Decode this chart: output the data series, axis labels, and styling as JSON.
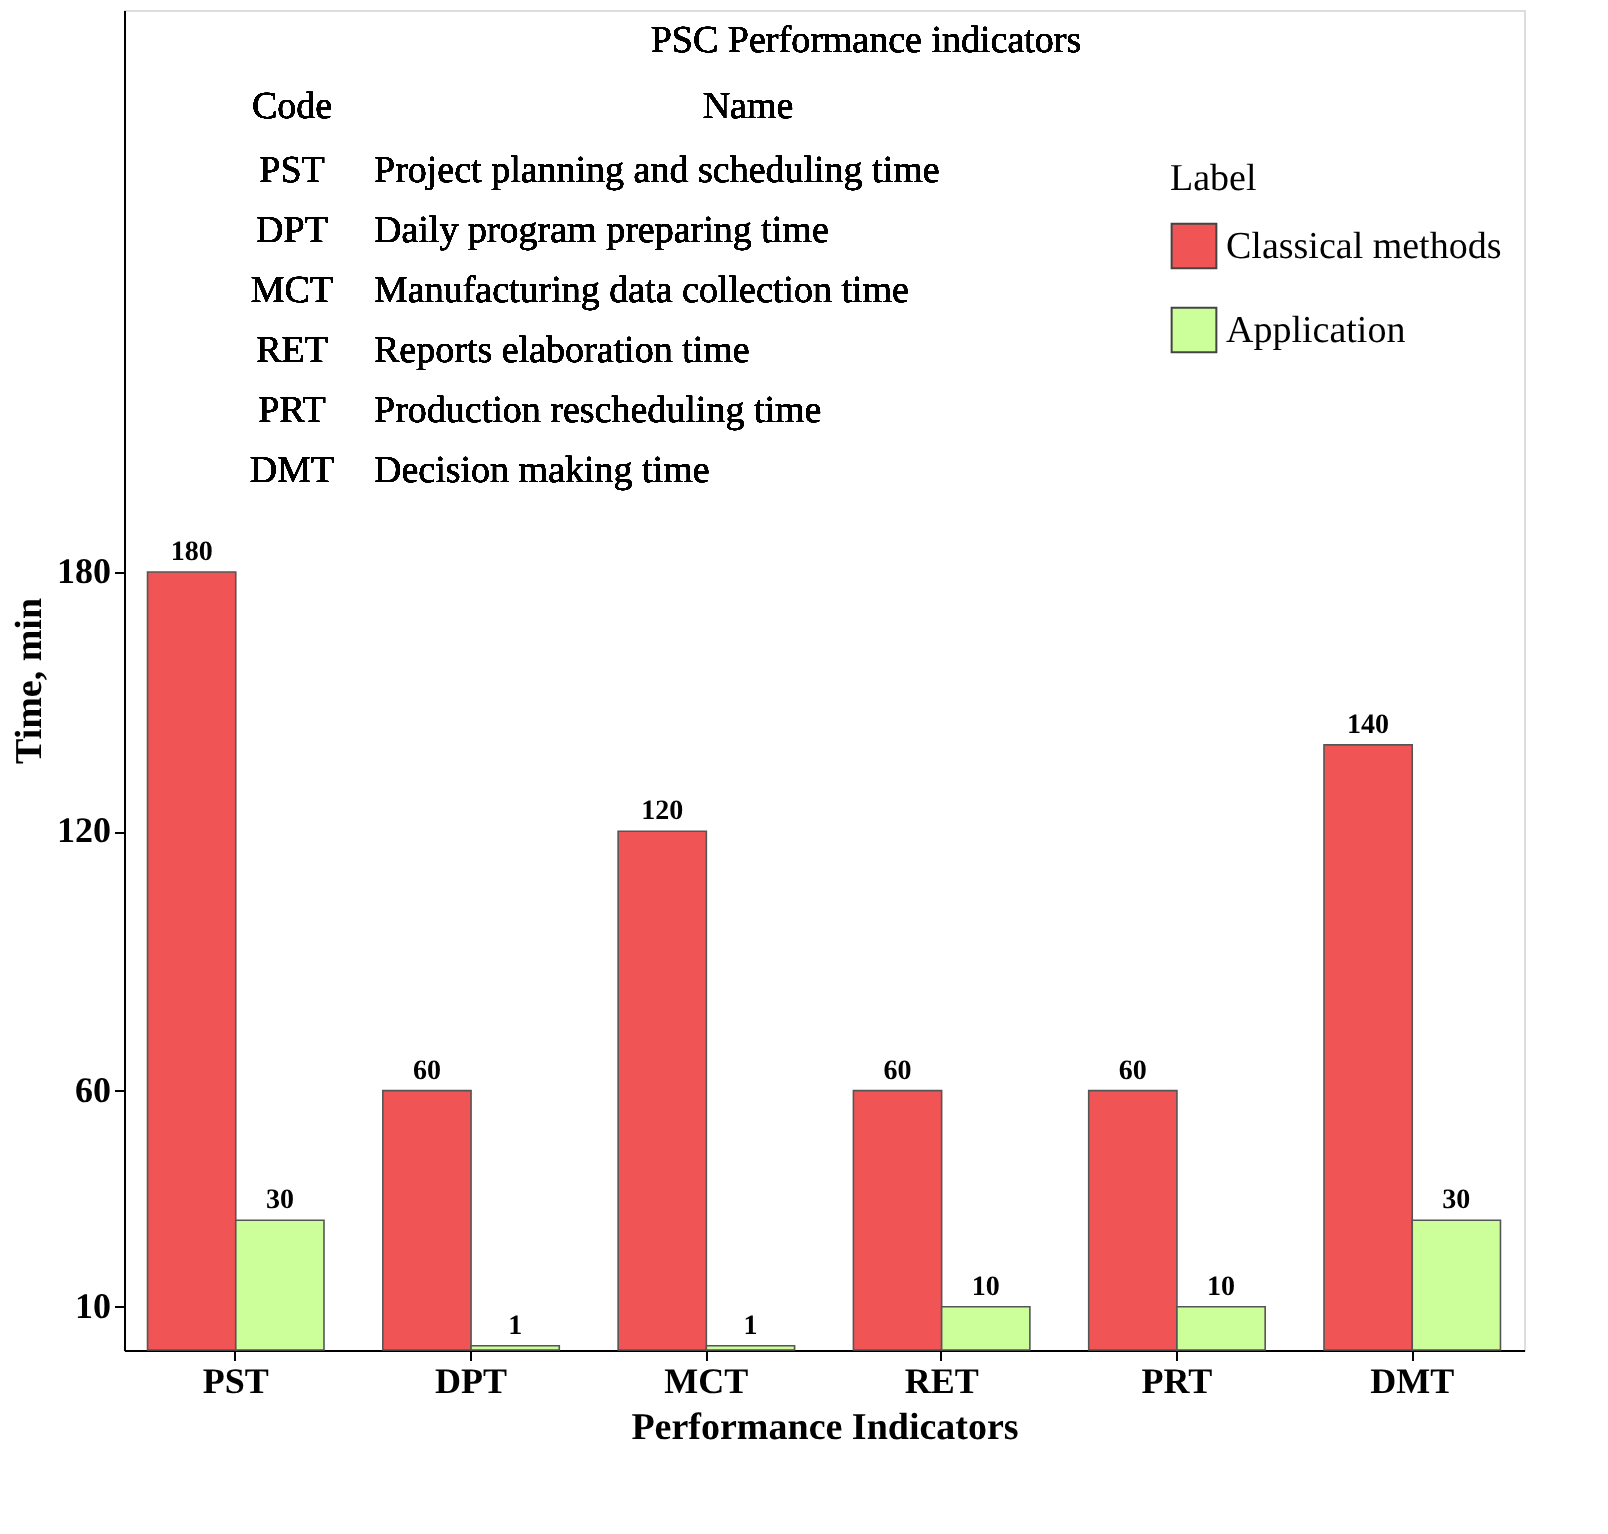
{
  "chart_data": {
    "type": "bar",
    "xlabel": "Performance Indicators",
    "ylabel": "Time, min",
    "categories": [
      "PST",
      "DPT",
      "MCT",
      "RET",
      "PRT",
      "DMT"
    ],
    "series": [
      {
        "name": "Classical methods",
        "color": "#f05454",
        "values": [
          180,
          60,
          120,
          60,
          60,
          140
        ]
      },
      {
        "name": "Application",
        "color": "#ccff99",
        "values": [
          30,
          1,
          1,
          10,
          10,
          30
        ]
      }
    ],
    "ylim": [
      0,
      310
    ],
    "yticks": [
      10,
      60,
      120,
      180
    ],
    "grid": false,
    "data_labels": true,
    "legend": "top right",
    "legend_title": "Label",
    "annotations": [
      "PSC Performance indicators",
      "Code",
      "Name",
      "PST",
      "Project planning and scheduling time",
      "DPT",
      "Daily program preparing time",
      "MCT",
      "Manufacturing data collection time",
      "RET",
      "Reports elaboration time",
      "PRT",
      "Production rescheduling time",
      "DMT",
      "Decision making time"
    ]
  }
}
